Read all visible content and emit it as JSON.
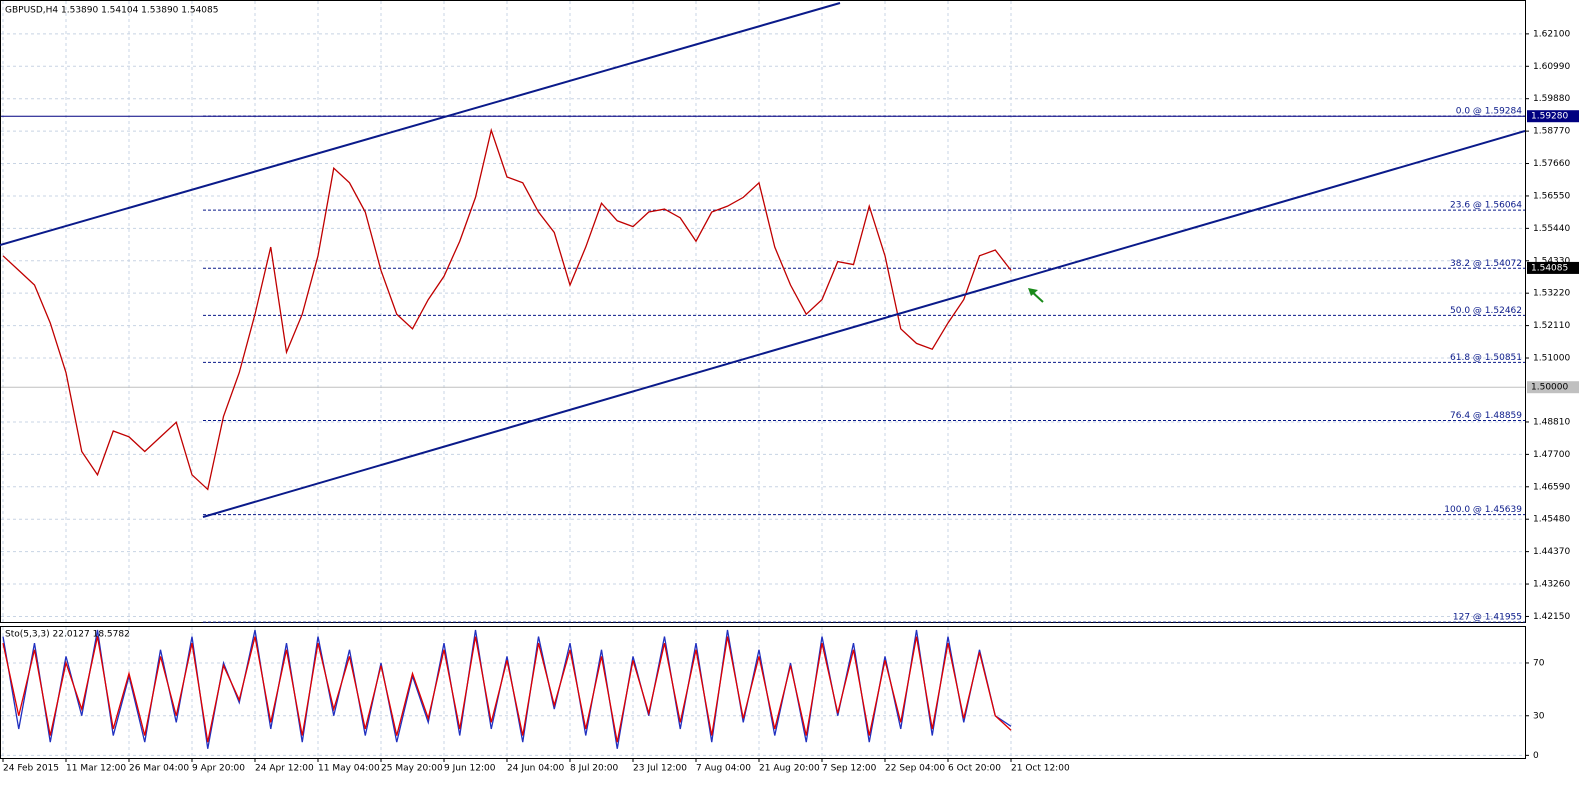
{
  "chart_data": [
    {
      "type": "line",
      "title": "GBPUSD,H4  1.53890 1.54104 1.53890 1.54085",
      "categories": [
        "24 Feb 2015",
        null,
        null,
        null,
        "11 Mar 12:00",
        null,
        null,
        null,
        "26 Mar 04:00",
        null,
        null,
        null,
        "9 Apr 20:00",
        null,
        null,
        null,
        "24 Apr 12:00",
        null,
        null,
        null,
        "11 May 04:00",
        null,
        null,
        null,
        "25 May 20:00",
        null,
        null,
        null,
        "9 Jun 12:00",
        null,
        null,
        null,
        "24 Jun 04:00",
        null,
        null,
        null,
        "8 Jul 20:00",
        null,
        null,
        null,
        "23 Jul 12:00",
        null,
        null,
        null,
        "7 Aug 04:00",
        null,
        null,
        null,
        "21 Aug 20:00",
        null,
        null,
        null,
        "7 Sep 12:00",
        null,
        null,
        null,
        "22 Sep 04:00",
        null,
        null,
        null,
        "6 Oct 20:00",
        null,
        null,
        null,
        "21 Oct 12:00"
      ],
      "series": [
        {
          "color": "#c00000",
          "values": [
            1.545,
            1.54,
            1.535,
            1.522,
            1.505,
            1.478,
            1.47,
            1.485,
            1.483,
            1.478,
            1.483,
            1.488,
            1.47,
            1.465,
            1.49,
            1.505,
            1.525,
            1.548,
            1.512,
            1.525,
            1.545,
            1.575,
            1.57,
            1.56,
            1.54,
            1.525,
            1.52,
            1.53,
            1.538,
            1.55,
            1.565,
            1.588,
            1.572,
            1.57,
            1.56,
            1.553,
            1.535,
            1.548,
            1.563,
            1.557,
            1.555,
            1.56,
            1.561,
            1.558,
            1.55,
            1.56,
            1.562,
            1.565,
            1.57,
            1.548,
            1.535,
            1.525,
            1.53,
            1.543,
            1.542,
            1.562,
            1.545,
            1.52,
            1.515,
            1.513,
            1.522,
            1.53,
            1.545,
            1.547,
            1.54
          ]
        }
      ],
      "ylim": [
        1.4196,
        1.6326
      ],
      "yticks": [
        {
          "value": 1.621,
          "label": "1.62100"
        },
        {
          "value": 1.6099,
          "label": "1.60990"
        },
        {
          "value": 1.5988,
          "label": "1.59880"
        },
        {
          "value": 1.5877,
          "label": "1.58770"
        },
        {
          "value": 1.5766,
          "label": "1.57660"
        },
        {
          "value": 1.5655,
          "label": "1.56550"
        },
        {
          "value": 1.5544,
          "label": "1.55440"
        },
        {
          "value": 1.5433,
          "label": "1.54330"
        },
        {
          "value": 1.5322,
          "label": "1.53220"
        },
        {
          "value": 1.5211,
          "label": "1.52110"
        },
        {
          "value": 1.51,
          "label": "1.51000"
        },
        {
          "value": 1.4881,
          "label": "1.48810"
        },
        {
          "value": 1.477,
          "label": "1.47700"
        },
        {
          "value": 1.4659,
          "label": "1.46590"
        },
        {
          "value": 1.4548,
          "label": "1.45480"
        },
        {
          "value": 1.4437,
          "label": "1.44370"
        },
        {
          "value": 1.4326,
          "label": "1.43260"
        },
        {
          "value": 1.4215,
          "label": "1.42150"
        }
      ],
      "grid": true,
      "levels": [
        {
          "value": 1.59284,
          "label": "0.0 @ 1.59284"
        },
        {
          "value": 1.56064,
          "label": "23.6 @ 1.56064"
        },
        {
          "value": 1.54072,
          "label": "38.2 @ 1.54072"
        },
        {
          "value": 1.52462,
          "label": "50.0 @ 1.52462"
        },
        {
          "value": 1.50851,
          "label": "61.8 @ 1.50851"
        },
        {
          "value": 1.48859,
          "label": "76.4 @ 1.48859"
        },
        {
          "value": 1.45639,
          "label": "100.0 @ 1.45639"
        },
        {
          "value": 1.41955,
          "label": "127 @ 1.41955"
        }
      ],
      "hlines": [
        {
          "value": 1.5928,
          "label": "1.59280",
          "color": "#000080",
          "line": true
        },
        {
          "value": 1.54085,
          "label": "1.54085",
          "color": "#000000",
          "line": false
        },
        {
          "value": 1.5,
          "label": "1.50000",
          "color": "#c0c0c0",
          "line": true
        }
      ]
    },
    {
      "type": "line",
      "title": "Sto(5,3,3) 22.0127 18.5782",
      "series": [
        {
          "color": "#2030c0",
          "values": [
            90,
            20,
            85,
            10,
            75,
            30,
            95,
            15,
            60,
            10,
            80,
            25,
            90,
            5,
            70,
            40,
            95,
            20,
            85,
            10,
            90,
            30,
            80,
            15,
            70,
            10,
            60,
            25,
            85,
            15,
            95,
            20,
            75,
            10,
            90,
            35,
            85,
            15,
            80,
            5,
            75,
            30,
            90,
            20,
            85,
            10,
            95,
            25,
            80,
            15,
            70,
            10,
            90,
            30,
            85,
            10,
            75,
            20,
            95,
            15,
            90,
            25,
            80,
            30,
            22
          ]
        },
        {
          "color": "#e00000",
          "values": [
            85,
            30,
            80,
            15,
            70,
            35,
            90,
            20,
            62,
            15,
            75,
            30,
            85,
            10,
            68,
            42,
            90,
            25,
            80,
            15,
            85,
            35,
            75,
            20,
            68,
            15,
            62,
            28,
            80,
            20,
            90,
            25,
            72,
            15,
            85,
            38,
            80,
            20,
            75,
            10,
            72,
            32,
            85,
            25,
            80,
            15,
            90,
            28,
            75,
            20,
            68,
            15,
            85,
            32,
            80,
            15,
            72,
            25,
            90,
            20,
            85,
            28,
            78,
            30,
            19
          ]
        }
      ],
      "ylim": [
        -2,
        98
      ],
      "yticks": [
        0,
        30,
        70
      ],
      "grid": true
    }
  ]
}
